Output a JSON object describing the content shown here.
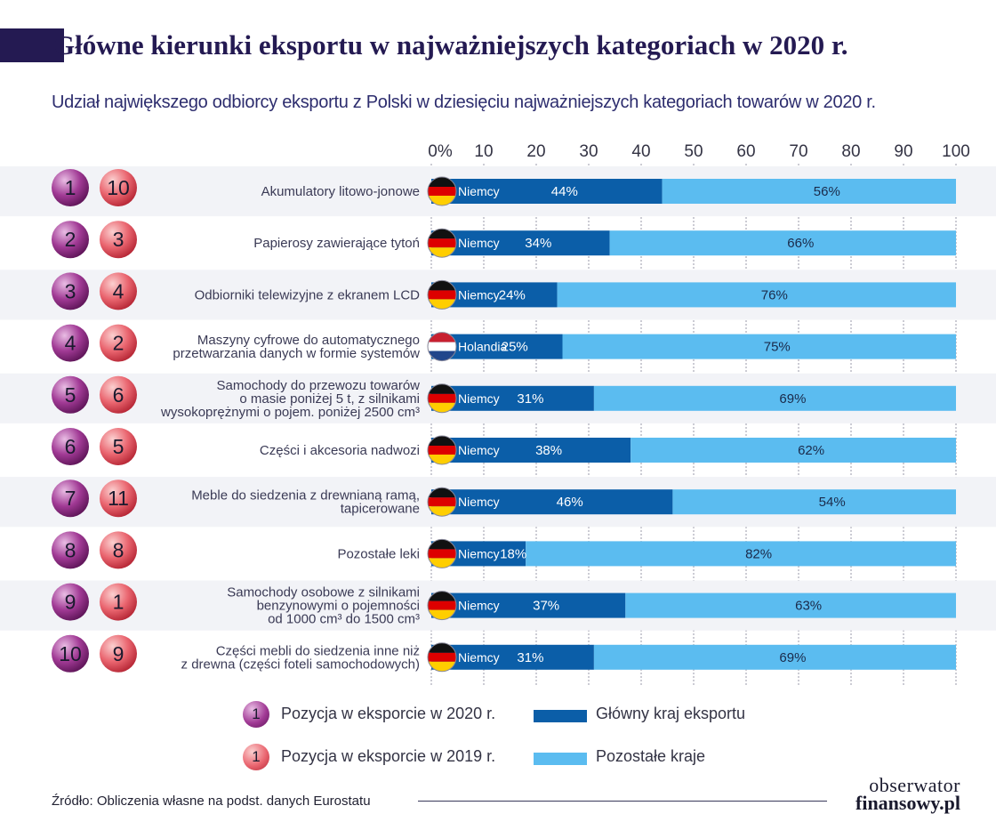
{
  "title": "Główne kierunki eksportu w najważniejszych kategoriach w 2020 r.",
  "subtitle": "Udział największego odbiorcy eksportu z Polski w dziesięciu najważniejszych kategoriach towarów w 2020 r.",
  "colors": {
    "main": "#0b5ea8",
    "rest": "#5bbcf0",
    "rank2020": "#8e2a82",
    "rank2019": "#e0505c",
    "row_band": "#f2f3f7"
  },
  "chart_data": {
    "type": "bar",
    "orientation": "horizontal",
    "stacked": true,
    "xlim": [
      0,
      100
    ],
    "x_tick_labels": [
      "0%",
      "10",
      "20",
      "30",
      "40",
      "50",
      "60",
      "70",
      "80",
      "90",
      "100"
    ],
    "categories": [
      [
        "Akumulatory litowo-jonowe"
      ],
      [
        "Papierosy zawierające tytoń"
      ],
      [
        "Odbiorniki telewizyjne z ekranem LCD"
      ],
      [
        "Maszyny cyfrowe do automatycznego",
        "przetwarzania danych w formie systemów"
      ],
      [
        "Samochody do przewozu towarów",
        "o masie poniżej 5 t, z silnikami",
        "wysokoprężnymi o pojem. poniżej 2500 cm³"
      ],
      [
        "Części i akcesoria nadwozi"
      ],
      [
        "Meble do siedzenia z drewnianą ramą,",
        "tapicerowane"
      ],
      [
        "Pozostałe leki"
      ],
      [
        "Samochody osobowe z silnikami",
        "benzynowymi o pojemności",
        "od 1000 cm³ do 1500 cm³"
      ],
      [
        "Części mebli do siedzenia inne niż",
        "z drewna (części foteli samochodowych)"
      ]
    ],
    "rank_2020": [
      1,
      2,
      3,
      4,
      5,
      6,
      7,
      8,
      9,
      10
    ],
    "rank_2019": [
      10,
      3,
      4,
      2,
      6,
      5,
      11,
      8,
      1,
      9
    ],
    "countries": [
      "Niemcy",
      "Niemcy",
      "Niemcy",
      "Holandia",
      "Niemcy",
      "Niemcy",
      "Niemcy",
      "Niemcy",
      "Niemcy",
      "Niemcy"
    ],
    "flags": [
      "flag-germany",
      "flag-germany",
      "flag-germany",
      "flag-netherlands",
      "flag-germany",
      "flag-germany",
      "flag-germany",
      "flag-germany",
      "flag-germany",
      "flag-germany"
    ],
    "series": [
      {
        "name": "Główny kraj eksportu",
        "values": [
          44,
          34,
          24,
          25,
          31,
          38,
          46,
          18,
          37,
          31
        ],
        "labels": [
          "44%",
          "34%",
          "24%",
          "25%",
          "31%",
          "38%",
          "46%",
          "18%",
          "37%",
          "31%"
        ]
      },
      {
        "name": "Pozostałe kraje",
        "values": [
          56,
          66,
          76,
          75,
          69,
          62,
          54,
          82,
          63,
          69
        ],
        "labels": [
          "56%",
          "66%",
          "76%",
          "75%",
          "69%",
          "62%",
          "54%",
          "82%",
          "63%",
          "69%"
        ]
      }
    ]
  },
  "legend": {
    "rank2020_badge": "1",
    "rank2020_label": "Pozycja w eksporcie w 2020 r.",
    "rank2019_badge": "1",
    "rank2019_label": "Pozycja w eksporcie w 2019 r.",
    "main_label": "Główny kraj eksportu",
    "rest_label": "Pozostałe kraje"
  },
  "source": "Źródło: Obliczenia własne na podst. danych Eurostatu",
  "logo": {
    "line1": "obserwator",
    "line2": "finansowy.pl"
  }
}
